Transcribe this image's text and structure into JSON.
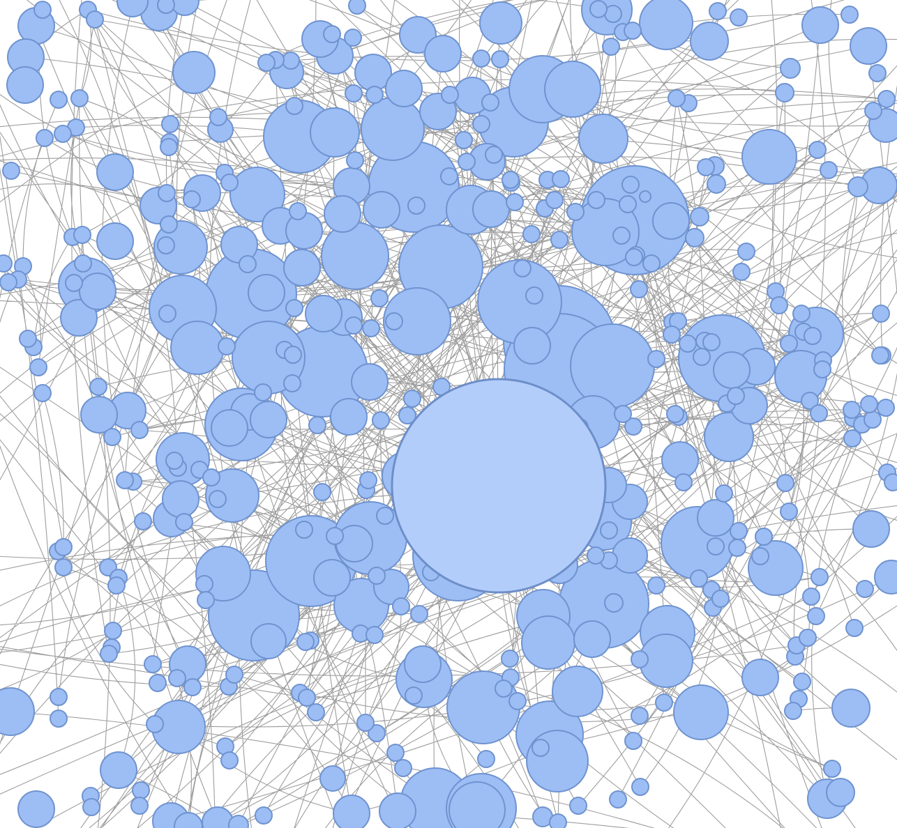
{
  "graph": {
    "node_fill": "#9dbdf5",
    "node_stroke": "#6f93cf",
    "selected_node_fill": "#b3cdfb",
    "selected_node_stroke": "#6d8ec8",
    "edge_color": "#8c8c8c",
    "background": "#ffffff"
  }
}
